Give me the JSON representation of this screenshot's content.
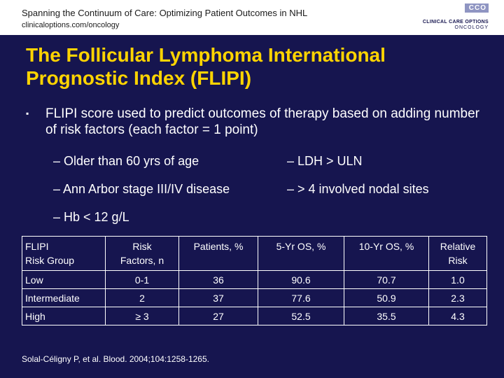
{
  "header": {
    "title": "Spanning the Continuum of Care: Optimizing Patient Outcomes in NHL",
    "url": "clinicaloptions.com/oncology",
    "logo": {
      "box_text": "CCO",
      "line1": "CLINICAL CARE OPTIONS",
      "line2": "ONCOLOGY"
    }
  },
  "slide": {
    "title": "The Follicular Lymphoma International Prognostic Index (FLIPI)",
    "bullet": "FLIPI score used to predict outcomes of therapy based on adding number of risk factors (each factor = 1 point)",
    "risk_factors": [
      "– Older than 60 yrs of age",
      "– LDH > ULN",
      "– Ann Arbor stage III/IV disease",
      "– > 4 involved nodal sites",
      "– Hb < 12 g/L"
    ]
  },
  "table": {
    "headers": [
      [
        "FLIPI",
        "Risk Group"
      ],
      [
        "Risk",
        "Factors, n"
      ],
      [
        "Patients, %"
      ],
      [
        "5-Yr OS, %"
      ],
      [
        "10-Yr OS, %"
      ],
      [
        "Relative",
        "Risk"
      ]
    ],
    "rows": [
      [
        "Low",
        "0-1",
        "36",
        "90.6",
        "70.7",
        "1.0"
      ],
      [
        "Intermediate",
        "2",
        "37",
        "77.6",
        "50.9",
        "2.3"
      ],
      [
        "High",
        "≥ 3",
        "27",
        "52.5",
        "35.5",
        "4.3"
      ]
    ]
  },
  "footnote": "Solal-Céligny P, et al. Blood. 2004;104:1258-1265.",
  "colors": {
    "background": "#16154f",
    "title": "#ffd400",
    "text": "#ffffff",
    "header_bar": "#ffffff",
    "logo_accent": "#8f95c2"
  }
}
